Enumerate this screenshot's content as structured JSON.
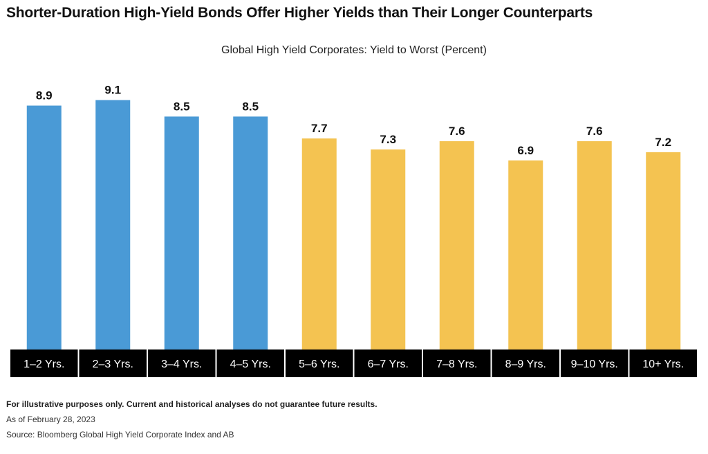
{
  "title": "Shorter-Duration High-Yield Bonds Offer Higher Yields than Their Longer Counterparts",
  "chart_data": {
    "type": "bar",
    "title": "Global High Yield Corporates: Yield to Worst (Percent)",
    "categories": [
      "1–2 Yrs.",
      "2–3 Yrs.",
      "3–4 Yrs.",
      "4–5 Yrs.",
      "5–6 Yrs.",
      "6–7 Yrs.",
      "7–8 Yrs.",
      "8–9 Yrs.",
      "9–10 Yrs.",
      "10+ Yrs."
    ],
    "values": [
      8.9,
      9.1,
      8.5,
      8.5,
      7.7,
      7.3,
      7.6,
      6.9,
      7.6,
      7.2
    ],
    "value_labels": [
      "8.9",
      "9.1",
      "8.5",
      "8.5",
      "7.7",
      "7.3",
      "7.6",
      "6.9",
      "7.6",
      "7.2"
    ],
    "bar_colors": [
      "#4a9ad6",
      "#4a9ad6",
      "#4a9ad6",
      "#4a9ad6",
      "#f4c351",
      "#f4c351",
      "#f4c351",
      "#f4c351",
      "#f4c351",
      "#f4c351"
    ],
    "category_label_background": "#000000",
    "category_label_color": "#ffffff",
    "xlabel": "",
    "ylabel": "",
    "ylim": [
      0,
      10
    ],
    "grid": false,
    "legend": "none"
  },
  "notes": {
    "disclaimer": "For illustrative purposes only. Current and historical analyses do not guarantee future results.",
    "as_of": "As of February 28, 2023",
    "source": "Source: Bloomberg Global High Yield Corporate Index and AB"
  }
}
